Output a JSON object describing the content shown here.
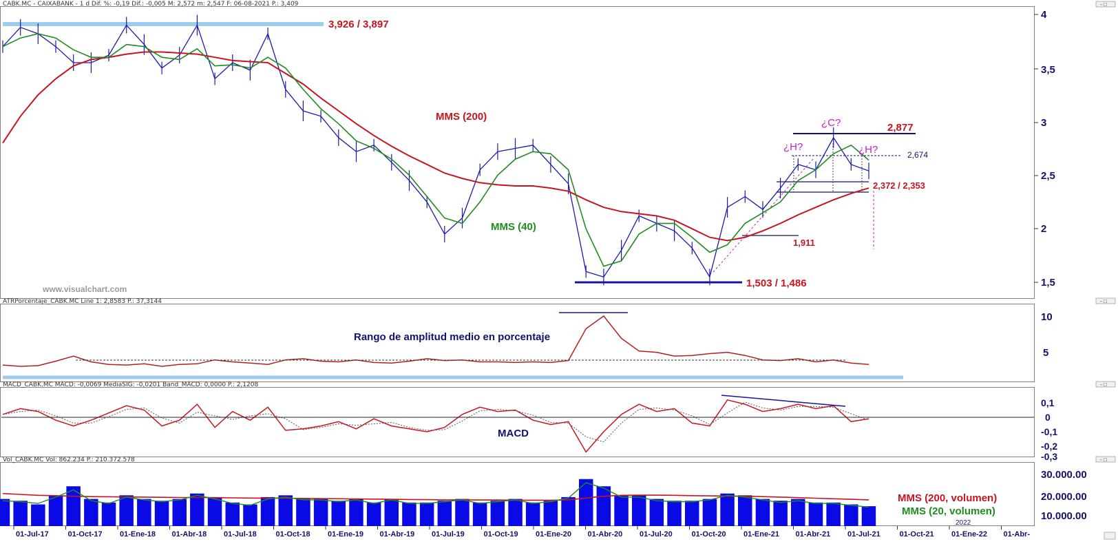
{
  "panels": {
    "price": {
      "header": "CABK.MC - CAIXABANK - 1 d  Dif. %: -0,19  Dif.: -0,005  M: 2,572  m: 2,547  F: 06-08-2021  P.: 3,409",
      "yticks": [
        "4",
        "3,5",
        "3",
        "2,5",
        "2",
        "1,5"
      ],
      "watermark": "www.visualchart.com",
      "labels": {
        "resistance": "3,926 / 3,897",
        "support": "1,503 / 1,486",
        "mms200": "MMS (200)",
        "mms40": "MMS (40)",
        "c": "¿C?",
        "h_left": "¿H?",
        "h_right": "¿H?",
        "level_2877": "2,877",
        "level_2674": "2,674",
        "level_2372": "2,372 / 2,353",
        "level_1911": "1,911"
      }
    },
    "atr": {
      "header": "ATRPorcentaje_CABK.MC  Line 1: 2,8583  P.: 37,3144",
      "yticks": [
        "10",
        "5"
      ],
      "label": "Rango de amplitud medio en porcentaje"
    },
    "macd": {
      "header": "MACD_CABK.MC  MACD: -0,0069  MediaSIG: -0,0201  Band_MACD: 0,0000  P.: 2,1208",
      "yticks": [
        "0,1",
        "0",
        "-0,1",
        "-0,2",
        "-0,3"
      ],
      "label": "MACD"
    },
    "volume": {
      "header": "Vol_CABK.MC  Vol: 862.234  P.: 210.372.578",
      "yticks": [
        "30.000.00",
        "20.000.00",
        "10.000.00"
      ],
      "label200": "MMS (200, volumen)",
      "label20": "MMS (20, volumen)"
    }
  },
  "xaxis": {
    "labels": [
      "01-Jul-17",
      "01-Oct-17",
      "01-Ene-18",
      "01-Abr-18",
      "01-Jul-18",
      "01-Oct-18",
      "01-Ene-19",
      "01-Abr-19",
      "01-Jul-19",
      "01-Oct-19",
      "01-Ene-20",
      "01-Abr-20",
      "01-Jul-20",
      "01-Oct-20",
      "01-Ene-21",
      "01-Abr-21",
      "01-Jul-21",
      "01-Oct-21",
      "01-Ene-22",
      "01-Abr-"
    ],
    "year_marker": "2022"
  },
  "colors": {
    "price": "#1a1aaa",
    "mms200": "#c8141e",
    "mms40": "#1e8c1e",
    "annotation_red": "#c8141e",
    "annotation_magenta": "#c81ec8",
    "annotation_navy": "#12126e",
    "support_blue": "#1414a0",
    "band_lightblue": "#9ccdee",
    "atr_line": "#b41e1e",
    "volume_bars": "#0a0ae6"
  },
  "chart_data": [
    {
      "type": "line",
      "name": "price",
      "ylim": [
        1.4,
        4.05
      ],
      "x": [
        "2017-06-01",
        "2017-07-01",
        "2017-08-01",
        "2017-09-01",
        "2017-10-01",
        "2017-11-01",
        "2017-12-01",
        "2018-01-01",
        "2018-02-01",
        "2018-03-01",
        "2018-04-01",
        "2018-05-01",
        "2018-06-01",
        "2018-07-01",
        "2018-08-01",
        "2018-09-01",
        "2018-10-01",
        "2018-11-01",
        "2018-12-01",
        "2019-01-01",
        "2019-02-01",
        "2019-03-01",
        "2019-04-01",
        "2019-05-01",
        "2019-06-01",
        "2019-07-01",
        "2019-08-01",
        "2019-09-01",
        "2019-10-01",
        "2019-11-01",
        "2019-12-01",
        "2020-01-01",
        "2020-02-01",
        "2020-03-01",
        "2020-04-01",
        "2020-05-01",
        "2020-06-01",
        "2020-07-01",
        "2020-08-01",
        "2020-09-01",
        "2020-10-01",
        "2020-11-01",
        "2020-12-01",
        "2021-01-01",
        "2021-02-01",
        "2021-03-01",
        "2021-04-01",
        "2021-05-01",
        "2021-06-01",
        "2021-07-01"
      ],
      "series": [
        {
          "name": "Price",
          "values": [
            3.7,
            3.88,
            3.82,
            3.7,
            3.55,
            3.55,
            3.62,
            3.9,
            3.72,
            3.5,
            3.62,
            3.9,
            3.4,
            3.55,
            3.48,
            3.82,
            3.3,
            3.1,
            3.05,
            2.85,
            2.72,
            2.78,
            2.62,
            2.45,
            2.25,
            1.95,
            2.1,
            2.55,
            2.72,
            2.75,
            2.78,
            2.6,
            2.42,
            1.6,
            1.55,
            1.8,
            2.12,
            2.05,
            1.98,
            1.82,
            1.55,
            2.2,
            2.3,
            2.18,
            2.38,
            2.6,
            2.55,
            2.85,
            2.6,
            2.54
          ]
        },
        {
          "name": "MMS (200)",
          "values": [
            2.8,
            3.05,
            3.25,
            3.4,
            3.52,
            3.58,
            3.6,
            3.63,
            3.65,
            3.65,
            3.64,
            3.63,
            3.6,
            3.57,
            3.56,
            3.55,
            3.45,
            3.35,
            3.22,
            3.1,
            2.98,
            2.87,
            2.77,
            2.68,
            2.6,
            2.52,
            2.47,
            2.43,
            2.41,
            2.4,
            2.4,
            2.38,
            2.35,
            2.27,
            2.2,
            2.16,
            2.14,
            2.12,
            2.08,
            2.0,
            1.92,
            1.89,
            1.92,
            1.98,
            2.05,
            2.13,
            2.2,
            2.27,
            2.33,
            2.38
          ]
        },
        {
          "name": "MMS (40)",
          "values": [
            3.7,
            3.78,
            3.82,
            3.78,
            3.67,
            3.6,
            3.6,
            3.72,
            3.7,
            3.6,
            3.58,
            3.68,
            3.52,
            3.53,
            3.5,
            3.6,
            3.5,
            3.3,
            3.12,
            2.98,
            2.82,
            2.75,
            2.65,
            2.5,
            2.3,
            2.1,
            2.05,
            2.25,
            2.5,
            2.65,
            2.72,
            2.7,
            2.55,
            2.0,
            1.65,
            1.7,
            1.95,
            2.05,
            2.05,
            1.92,
            1.78,
            1.85,
            2.05,
            2.15,
            2.25,
            2.45,
            2.55,
            2.7,
            2.78,
            2.64
          ]
        }
      ]
    },
    {
      "type": "line",
      "name": "ATR porcentaje",
      "ylim": [
        0,
        12
      ],
      "x": [
        "2017-06-01",
        "2017-07-01",
        "2017-08-01",
        "2017-09-01",
        "2017-10-01",
        "2017-11-01",
        "2017-12-01",
        "2018-01-01",
        "2018-02-01",
        "2018-03-01",
        "2018-04-01",
        "2018-05-01",
        "2018-06-01",
        "2018-07-01",
        "2018-08-01",
        "2018-09-01",
        "2018-10-01",
        "2018-11-01",
        "2018-12-01",
        "2019-01-01",
        "2019-02-01",
        "2019-03-01",
        "2019-04-01",
        "2019-05-01",
        "2019-06-01",
        "2019-07-01",
        "2019-08-01",
        "2019-09-01",
        "2019-10-01",
        "2019-11-01",
        "2019-12-01",
        "2020-01-01",
        "2020-02-01",
        "2020-03-01",
        "2020-04-01",
        "2020-05-01",
        "2020-06-01",
        "2020-07-01",
        "2020-08-01",
        "2020-09-01",
        "2020-10-01",
        "2020-11-01",
        "2020-12-01",
        "2021-01-01",
        "2021-02-01",
        "2021-03-01",
        "2021-04-01",
        "2021-05-01",
        "2021-06-01",
        "2021-07-01"
      ],
      "series": [
        {
          "name": "ATR",
          "values": [
            2.8,
            2.6,
            2.7,
            3.4,
            4.2,
            3.3,
            2.9,
            2.8,
            3.0,
            2.6,
            2.9,
            3.0,
            3.6,
            3.3,
            3.1,
            2.9,
            3.6,
            3.8,
            3.4,
            3.3,
            3.6,
            3.2,
            3.1,
            3.4,
            3.8,
            3.5,
            3.6,
            3.3,
            3.3,
            3.2,
            3.3,
            3.2,
            3.5,
            8.5,
            10.5,
            7.0,
            5.0,
            4.8,
            4.2,
            4.3,
            4.6,
            4.8,
            4.3,
            3.6,
            3.5,
            3.8,
            3.3,
            3.6,
            3.1,
            2.9
          ]
        }
      ]
    },
    {
      "type": "line",
      "name": "MACD",
      "ylim": [
        -0.35,
        0.15
      ],
      "x": [
        "2017-06-01",
        "2017-07-01",
        "2017-08-01",
        "2017-09-01",
        "2017-10-01",
        "2017-11-01",
        "2017-12-01",
        "2018-01-01",
        "2018-02-01",
        "2018-03-01",
        "2018-04-01",
        "2018-05-01",
        "2018-06-01",
        "2018-07-01",
        "2018-08-01",
        "2018-09-01",
        "2018-10-01",
        "2018-11-01",
        "2018-12-01",
        "2019-01-01",
        "2019-02-01",
        "2019-03-01",
        "2019-04-01",
        "2019-05-01",
        "2019-06-01",
        "2019-07-01",
        "2019-08-01",
        "2019-09-01",
        "2019-10-01",
        "2019-11-01",
        "2019-12-01",
        "2020-01-01",
        "2020-02-01",
        "2020-03-01",
        "2020-04-01",
        "2020-05-01",
        "2020-06-01",
        "2020-07-01",
        "2020-08-01",
        "2020-09-01",
        "2020-10-01",
        "2020-11-01",
        "2020-12-01",
        "2021-01-01",
        "2021-02-01",
        "2021-03-01",
        "2021-04-01",
        "2021-05-01",
        "2021-06-01",
        "2021-07-01"
      ],
      "series": [
        {
          "name": "MACD",
          "values": [
            0.02,
            0.06,
            0.04,
            -0.02,
            -0.06,
            -0.02,
            0.03,
            0.08,
            0.05,
            -0.06,
            -0.02,
            0.09,
            -0.07,
            0.04,
            -0.02,
            0.07,
            -0.09,
            -0.08,
            -0.06,
            -0.03,
            -0.08,
            -0.01,
            -0.06,
            -0.08,
            -0.1,
            -0.07,
            0.02,
            0.07,
            0.04,
            0.05,
            -0.02,
            -0.05,
            -0.03,
            -0.24,
            -0.1,
            0.02,
            0.09,
            0.04,
            0.06,
            -0.04,
            -0.06,
            0.12,
            0.09,
            0.04,
            0.06,
            0.09,
            0.06,
            0.08,
            -0.03,
            -0.01
          ]
        }
      ]
    },
    {
      "type": "bar",
      "name": "Volumen",
      "ylim": [
        0,
        35000
      ],
      "x": [
        "2017-06-01",
        "2017-07-01",
        "2017-08-01",
        "2017-09-01",
        "2017-10-01",
        "2017-11-01",
        "2017-12-01",
        "2018-01-01",
        "2018-02-01",
        "2018-03-01",
        "2018-04-01",
        "2018-05-01",
        "2018-06-01",
        "2018-07-01",
        "2018-08-01",
        "2018-09-01",
        "2018-10-01",
        "2018-11-01",
        "2018-12-01",
        "2019-01-01",
        "2019-02-01",
        "2019-03-01",
        "2019-04-01",
        "2019-05-01",
        "2019-06-01",
        "2019-07-01",
        "2019-08-01",
        "2019-09-01",
        "2019-10-01",
        "2019-11-01",
        "2019-12-01",
        "2020-01-01",
        "2020-02-01",
        "2020-03-01",
        "2020-04-01",
        "2020-05-01",
        "2020-06-01",
        "2020-07-01",
        "2020-08-01",
        "2020-09-01",
        "2020-10-01",
        "2020-11-01",
        "2020-12-01",
        "2021-01-01",
        "2021-02-01",
        "2021-03-01",
        "2021-04-01",
        "2021-05-01",
        "2021-06-01",
        "2021-07-01"
      ],
      "series": [
        {
          "name": "Volumen",
          "values": [
            15000,
            14000,
            12000,
            17000,
            22000,
            15000,
            13000,
            17000,
            15000,
            14000,
            15000,
            18000,
            16000,
            13000,
            12000,
            16000,
            17000,
            15000,
            15000,
            14000,
            15000,
            13000,
            15000,
            13000,
            13000,
            14000,
            15000,
            13000,
            14000,
            15000,
            13000,
            14000,
            16000,
            26000,
            22000,
            17000,
            17000,
            15000,
            14000,
            14000,
            15000,
            18000,
            17000,
            15000,
            14000,
            15000,
            13000,
            13000,
            12000,
            11000
          ]
        },
        {
          "name": "MMS (200, volumen)",
          "values": [
            18000,
            17500,
            17000,
            16800,
            16500,
            16300,
            16200,
            16100,
            16000,
            15900,
            15800,
            15800,
            15700,
            15600,
            15500,
            15400,
            15400,
            15300,
            15200,
            15100,
            15000,
            14900,
            14800,
            14700,
            14600,
            14500,
            14500,
            14400,
            14400,
            14300,
            14300,
            14300,
            14500,
            15500,
            16500,
            17000,
            17100,
            17100,
            17000,
            16800,
            16700,
            16600,
            16500,
            16300,
            16000,
            15700,
            15400,
            15100,
            14800,
            14500
          ]
        },
        {
          "name": "MMS (20, volumen)",
          "values": [
            14000,
            13500,
            12500,
            16000,
            20000,
            14000,
            12500,
            16000,
            14500,
            13500,
            14500,
            17000,
            15000,
            12500,
            11500,
            15000,
            16000,
            14500,
            14500,
            13500,
            14500,
            12500,
            14500,
            12500,
            12500,
            13500,
            14500,
            12500,
            13500,
            14500,
            12500,
            13500,
            15500,
            24000,
            21000,
            16000,
            16000,
            14000,
            13500,
            13500,
            14500,
            17000,
            16000,
            14500,
            13000,
            14000,
            12500,
            12500,
            11500,
            10500
          ]
        }
      ]
    }
  ]
}
